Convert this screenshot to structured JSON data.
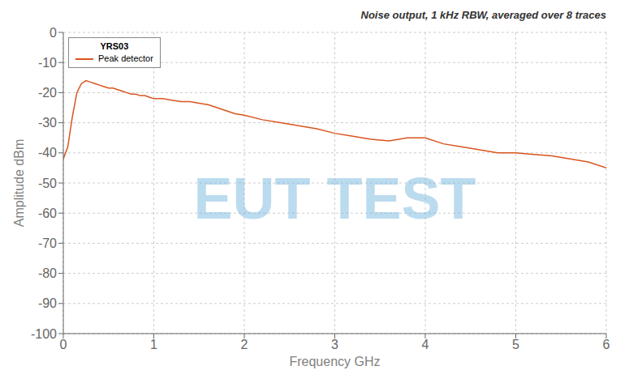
{
  "chart_data": {
    "type": "line",
    "title": "Noise output, 1 kHz RBW, averaged over 8 traces",
    "xlabel": "Frequency GHz",
    "ylabel": "Amplitude dBm",
    "legend_title": "YRS03",
    "annotations": [
      {
        "text": "EUT TEST"
      }
    ],
    "x": [
      0.0,
      0.05,
      0.1,
      0.15,
      0.2,
      0.25,
      0.3,
      0.35,
      0.4,
      0.45,
      0.5,
      0.55,
      0.6,
      0.65,
      0.7,
      0.75,
      0.8,
      0.85,
      0.9,
      0.95,
      1.0,
      1.1,
      1.2,
      1.3,
      1.4,
      1.5,
      1.6,
      1.7,
      1.8,
      1.9,
      2.0,
      2.2,
      2.4,
      2.6,
      2.8,
      3.0,
      3.2,
      3.4,
      3.6,
      3.8,
      4.0,
      4.2,
      4.4,
      4.6,
      4.8,
      5.0,
      5.2,
      5.4,
      5.6,
      5.8,
      6.0
    ],
    "series": [
      {
        "name": "Peak detector",
        "color": "#d9541e",
        "values": [
          -42,
          -38,
          -28,
          -20,
          -17,
          -16,
          -16.5,
          -17,
          -17.5,
          -18,
          -18.5,
          -18.5,
          -19,
          -19.5,
          -20,
          -20.5,
          -20.5,
          -21,
          -21,
          -21.5,
          -22,
          -22,
          -22.5,
          -23,
          -23,
          -23.5,
          -24,
          -25,
          -26,
          -27,
          -27.5,
          -29,
          -30,
          -31,
          -32,
          -33.5,
          -34.5,
          -35.5,
          -36,
          -35,
          -35,
          -37,
          -38,
          -39,
          -40,
          -40,
          -40.5,
          -41,
          -42,
          -43,
          -45
        ]
      }
    ],
    "xlim": [
      0,
      6
    ],
    "ylim": [
      -100,
      0
    ],
    "xticks": [
      0,
      1,
      2,
      3,
      4,
      5,
      6
    ],
    "yticks": [
      0,
      -10,
      -20,
      -30,
      -40,
      -50,
      -60,
      -70,
      -80,
      -90,
      -100
    ],
    "grid": true,
    "legend": "upper left"
  }
}
